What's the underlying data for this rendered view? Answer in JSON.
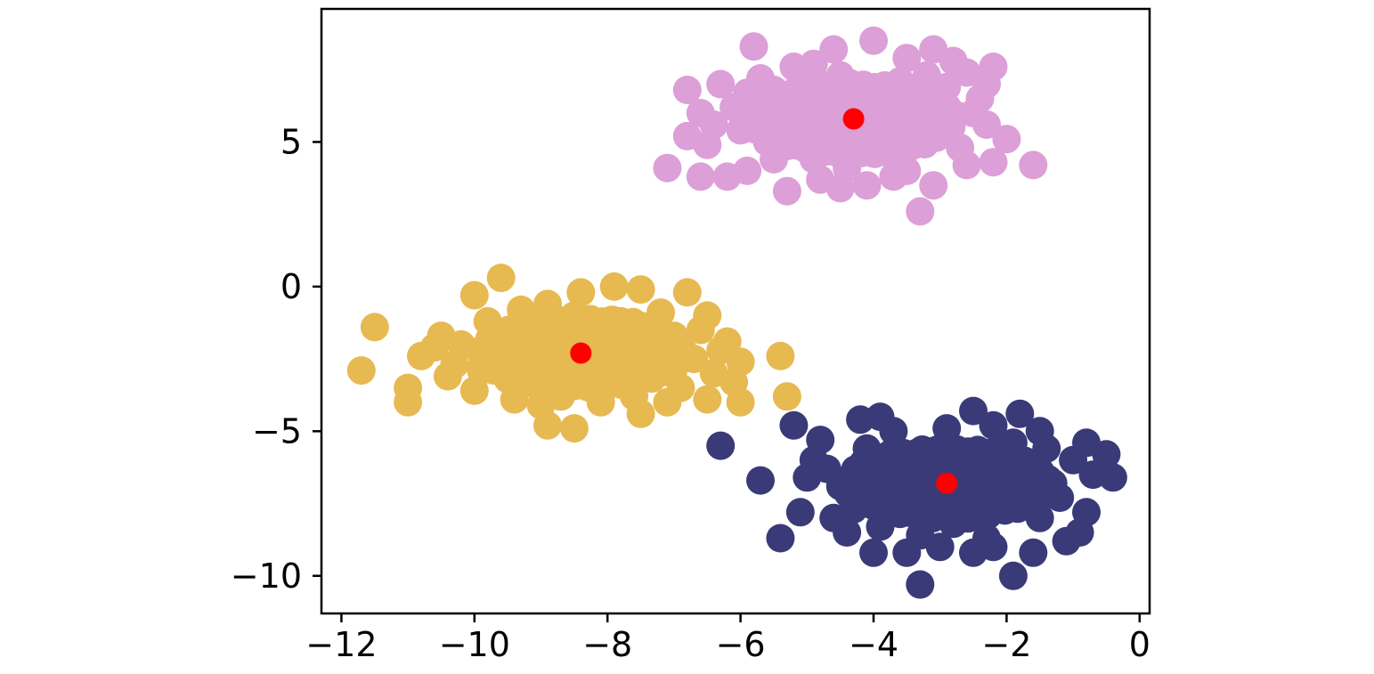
{
  "chart_data": {
    "type": "scatter",
    "title": "",
    "xlabel": "",
    "ylabel": "",
    "xlim": [
      -12.3,
      0.15
    ],
    "ylim": [
      -11.3,
      9.6
    ],
    "xticks": [
      -12,
      -10,
      -8,
      -6,
      -4,
      -2,
      0
    ],
    "yticks": [
      -10,
      -5,
      0,
      5
    ],
    "xtick_labels": [
      "−12",
      "−10",
      "−8",
      "−6",
      "−4",
      "−2",
      "0"
    ],
    "ytick_labels": [
      "−10",
      "−5",
      "0",
      "5"
    ],
    "grid": false,
    "legend": "none",
    "series": [
      {
        "color": "#dc9fd7",
        "cluster_center": [
          -4.3,
          5.8
        ],
        "points": [
          [
            -5.8,
            8.3
          ],
          [
            -4.6,
            8.2
          ],
          [
            -4.0,
            8.5
          ],
          [
            -3.1,
            8.2
          ],
          [
            -5.2,
            7.6
          ],
          [
            -4.9,
            7.7
          ],
          [
            -3.5,
            7.9
          ],
          [
            -6.8,
            6.8
          ],
          [
            -6.3,
            7.0
          ],
          [
            -6.6,
            6.0
          ],
          [
            -6.8,
            5.2
          ],
          [
            -7.1,
            4.1
          ],
          [
            -6.6,
            3.8
          ],
          [
            -6.2,
            3.8
          ],
          [
            -5.9,
            4.0
          ],
          [
            -5.3,
            3.3
          ],
          [
            -4.8,
            3.7
          ],
          [
            -4.5,
            3.4
          ],
          [
            -4.1,
            3.5
          ],
          [
            -3.7,
            3.8
          ],
          [
            -3.3,
            2.6
          ],
          [
            -3.1,
            3.5
          ],
          [
            -2.6,
            4.2
          ],
          [
            -2.2,
            4.3
          ],
          [
            -1.6,
            4.2
          ],
          [
            -2.3,
            5.6
          ],
          [
            -2.4,
            6.5
          ],
          [
            -2.2,
            7.6
          ],
          [
            -2.6,
            7.4
          ],
          [
            -2.9,
            6.9
          ],
          [
            -6.1,
            6.2
          ],
          [
            -5.5,
            6.8
          ],
          [
            -5.0,
            6.1
          ],
          [
            -4.6,
            5.0
          ],
          [
            -3.9,
            5.2
          ],
          [
            -3.4,
            6.3
          ],
          [
            -2.9,
            5.5
          ],
          [
            -5.6,
            5.0
          ],
          [
            -4.2,
            6.9
          ],
          [
            -3.7,
            4.5
          ],
          [
            -6.0,
            5.4
          ],
          [
            -2.7,
            4.8
          ],
          [
            -4.9,
            4.4
          ],
          [
            -5.3,
            5.9
          ],
          [
            -3.6,
            7.1
          ],
          [
            -4.4,
            4.1
          ],
          [
            -3.0,
            6.2
          ],
          [
            -5.7,
            7.2
          ],
          [
            -3.9,
            6.4
          ],
          [
            -4.7,
            6.7
          ],
          [
            -2.5,
            6.0
          ],
          [
            -5.1,
            5.3
          ],
          [
            -3.3,
            5.0
          ],
          [
            -4.0,
            4.6
          ],
          [
            -6.4,
            5.6
          ],
          [
            -5.5,
            4.4
          ],
          [
            -2.8,
            7.8
          ],
          [
            -4.5,
            7.3
          ],
          [
            -3.5,
            4.0
          ],
          [
            -6.5,
            4.9
          ],
          [
            -2.0,
            5.1
          ],
          [
            -4.1,
            5.9
          ],
          [
            -4.8,
            5.6
          ],
          [
            -3.8,
            5.7
          ],
          [
            -5.9,
            6.7
          ],
          [
            -3.2,
            7.3
          ],
          [
            -2.3,
            7.0
          ],
          [
            -4.3,
            6.2
          ],
          [
            -5.0,
            7.3
          ],
          [
            -3.6,
            6.0
          ]
        ]
      },
      {
        "color": "#e7b951",
        "cluster_center": [
          -8.4,
          -2.3
        ],
        "points": [
          [
            -11.7,
            -2.9
          ],
          [
            -11.5,
            -1.4
          ],
          [
            -11.0,
            -3.5
          ],
          [
            -11.0,
            -4.0
          ],
          [
            -10.8,
            -2.4
          ],
          [
            -10.6,
            -2.1
          ],
          [
            -10.4,
            -3.1
          ],
          [
            -10.0,
            -3.6
          ],
          [
            -10.0,
            -0.3
          ],
          [
            -9.6,
            0.3
          ],
          [
            -9.3,
            -0.8
          ],
          [
            -9.0,
            -4.1
          ],
          [
            -8.9,
            -4.8
          ],
          [
            -8.5,
            -4.9
          ],
          [
            -8.4,
            -0.2
          ],
          [
            -7.9,
            0.0
          ],
          [
            -7.5,
            -0.1
          ],
          [
            -7.5,
            -4.4
          ],
          [
            -6.8,
            -0.2
          ],
          [
            -6.5,
            -1.0
          ],
          [
            -6.5,
            -3.9
          ],
          [
            -6.2,
            -1.9
          ],
          [
            -6.0,
            -4.0
          ],
          [
            -6.0,
            -2.6
          ],
          [
            -5.4,
            -2.4
          ],
          [
            -5.3,
            -3.8
          ],
          [
            -9.8,
            -1.2
          ],
          [
            -10.2,
            -2.0
          ],
          [
            -9.2,
            -2.8
          ],
          [
            -8.8,
            -1.5
          ],
          [
            -8.2,
            -3.4
          ],
          [
            -7.8,
            -1.2
          ],
          [
            -7.3,
            -2.9
          ],
          [
            -7.0,
            -1.7
          ],
          [
            -6.9,
            -3.5
          ],
          [
            -9.5,
            -3.2
          ],
          [
            -8.6,
            -2.7
          ],
          [
            -7.6,
            -3.8
          ],
          [
            -6.7,
            -2.5
          ],
          [
            -9.1,
            -1.9
          ],
          [
            -8.0,
            -2.2
          ],
          [
            -10.5,
            -1.7
          ],
          [
            -9.7,
            -2.4
          ],
          [
            -7.2,
            -0.9
          ],
          [
            -8.5,
            -1.0
          ],
          [
            -6.4,
            -3.0
          ],
          [
            -9.4,
            -3.9
          ],
          [
            -8.1,
            -4.0
          ],
          [
            -6.3,
            -2.2
          ],
          [
            -7.1,
            -4.0
          ],
          [
            -9.9,
            -2.9
          ],
          [
            -8.3,
            -1.6
          ],
          [
            -7.4,
            -2.0
          ],
          [
            -8.9,
            -0.6
          ],
          [
            -6.6,
            -1.5
          ],
          [
            -10.3,
            -2.7
          ],
          [
            -7.7,
            -3.2
          ],
          [
            -9.0,
            -3.4
          ],
          [
            -6.1,
            -3.3
          ],
          [
            -8.7,
            -3.8
          ]
        ]
      },
      {
        "color": "#3a3a78",
        "cluster_center": [
          -2.9,
          -6.8
        ],
        "points": [
          [
            -6.3,
            -5.5
          ],
          [
            -5.7,
            -6.7
          ],
          [
            -5.4,
            -8.7
          ],
          [
            -5.2,
            -4.8
          ],
          [
            -4.9,
            -6.0
          ],
          [
            -4.2,
            -4.6
          ],
          [
            -3.9,
            -4.5
          ],
          [
            -3.3,
            -10.3
          ],
          [
            -3.0,
            -9.0
          ],
          [
            -2.5,
            -9.2
          ],
          [
            -2.5,
            -4.3
          ],
          [
            -2.2,
            -4.8
          ],
          [
            -1.9,
            -10.0
          ],
          [
            -1.8,
            -4.4
          ],
          [
            -1.6,
            -9.2
          ],
          [
            -1.5,
            -5.0
          ],
          [
            -1.1,
            -8.8
          ],
          [
            -0.9,
            -8.5
          ],
          [
            -0.8,
            -7.8
          ],
          [
            -0.4,
            -6.6
          ],
          [
            -0.5,
            -5.8
          ],
          [
            -0.8,
            -5.4
          ],
          [
            -5.1,
            -7.8
          ],
          [
            -4.6,
            -8.0
          ],
          [
            -4.0,
            -9.2
          ],
          [
            -3.5,
            -9.2
          ],
          [
            -4.5,
            -6.9
          ],
          [
            -4.0,
            -6.2
          ],
          [
            -3.4,
            -7.7
          ],
          [
            -3.0,
            -5.6
          ],
          [
            -2.6,
            -7.0
          ],
          [
            -2.1,
            -6.2
          ],
          [
            -1.7,
            -7.6
          ],
          [
            -1.3,
            -6.8
          ],
          [
            -1.0,
            -6.0
          ],
          [
            -4.8,
            -5.3
          ],
          [
            -3.7,
            -5.0
          ],
          [
            -2.8,
            -8.2
          ],
          [
            -2.3,
            -8.7
          ],
          [
            -1.5,
            -8.0
          ],
          [
            -4.3,
            -7.7
          ],
          [
            -3.9,
            -8.3
          ],
          [
            -2.9,
            -4.9
          ],
          [
            -1.9,
            -5.4
          ],
          [
            -3.2,
            -6.3
          ],
          [
            -2.0,
            -7.1
          ],
          [
            -4.7,
            -6.3
          ],
          [
            -3.6,
            -6.9
          ],
          [
            -1.2,
            -7.3
          ],
          [
            -0.7,
            -6.5
          ],
          [
            -2.4,
            -5.7
          ],
          [
            -4.1,
            -5.6
          ],
          [
            -3.3,
            -8.6
          ],
          [
            -1.6,
            -6.4
          ],
          [
            -2.7,
            -6.0
          ],
          [
            -4.4,
            -8.5
          ],
          [
            -5.0,
            -6.6
          ],
          [
            -1.4,
            -5.6
          ],
          [
            -2.2,
            -9.0
          ],
          [
            -3.8,
            -7.2
          ]
        ]
      },
      {
        "color": "#ff0000",
        "points": [
          [
            -4.3,
            5.8
          ],
          [
            -8.4,
            -2.3
          ],
          [
            -2.9,
            -6.8
          ]
        ]
      }
    ]
  }
}
